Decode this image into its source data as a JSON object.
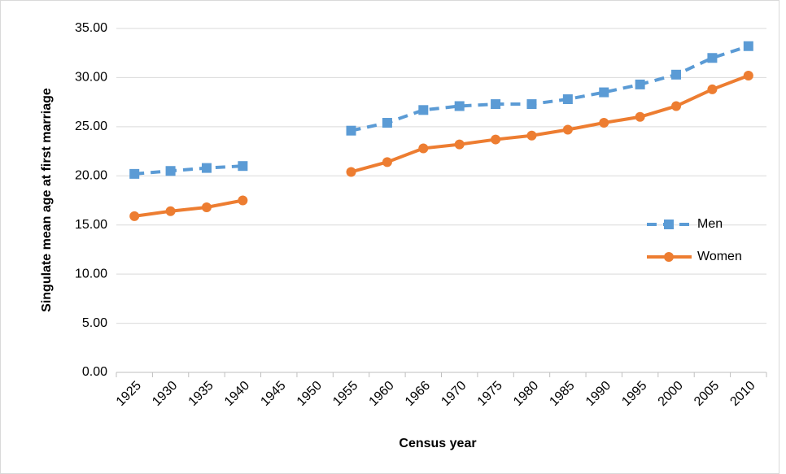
{
  "chart_data": {
    "type": "line",
    "x_label": "Census year",
    "y_label": "Singulate mean age at first marriage",
    "categories": [
      "1925",
      "1930",
      "1935",
      "1940",
      "1945",
      "1950",
      "1955",
      "1960",
      "1966",
      "1970",
      "1975",
      "1980",
      "1985",
      "1990",
      "1995",
      "2000",
      "2005",
      "2010"
    ],
    "series": [
      {
        "name": "Men",
        "color": "#5b9bd5",
        "marker": "square",
        "dashed": true,
        "values": [
          20.2,
          20.5,
          20.8,
          21.0,
          null,
          null,
          24.6,
          25.4,
          26.7,
          27.1,
          27.3,
          27.3,
          27.8,
          28.5,
          29.3,
          30.3,
          32.0,
          33.2
        ]
      },
      {
        "name": "Women",
        "color": "#ed7d31",
        "marker": "circle",
        "dashed": false,
        "values": [
          15.9,
          16.4,
          16.8,
          17.5,
          null,
          null,
          20.4,
          21.4,
          22.8,
          23.2,
          23.7,
          24.1,
          24.7,
          25.4,
          26.0,
          27.1,
          28.8,
          30.2
        ]
      }
    ],
    "ylim": [
      0,
      35
    ],
    "yticks": [
      {
        "value": 0,
        "label": "0.00"
      },
      {
        "value": 5,
        "label": "5.00"
      },
      {
        "value": 10,
        "label": "10.00"
      },
      {
        "value": 15,
        "label": "15.00"
      },
      {
        "value": 20,
        "label": "20.00"
      },
      {
        "value": 25,
        "label": "25.00"
      },
      {
        "value": 30,
        "label": "30.00"
      },
      {
        "value": 35,
        "label": "35.00"
      }
    ],
    "grid": true,
    "legend": "right"
  }
}
